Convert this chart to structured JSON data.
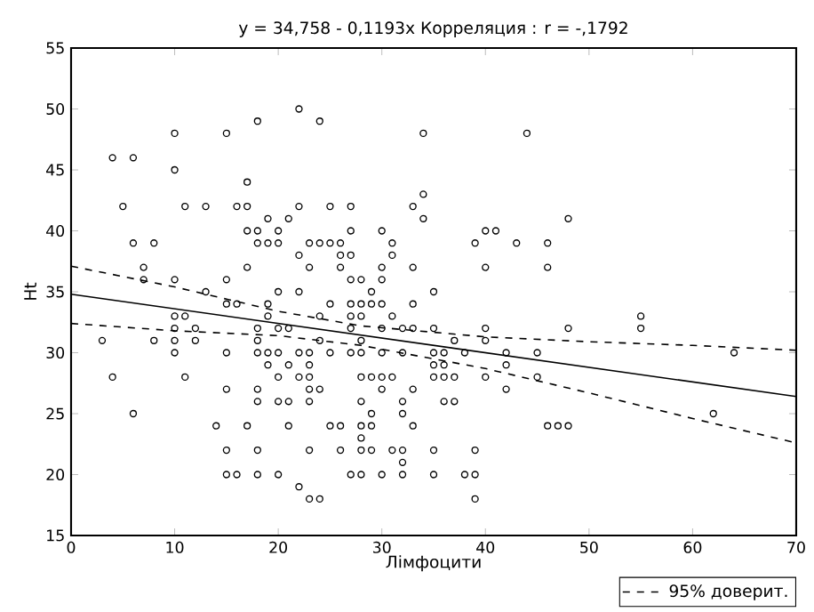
{
  "chart_data": {
    "type": "scatter",
    "title": "y = 34,758 - 0,1193x  Корреляция : r = -,1792",
    "xlabel": "Лімфоцити",
    "ylabel": "Ht",
    "xlim": [
      0,
      70
    ],
    "ylim": [
      15,
      55
    ],
    "xticks": [
      0,
      10,
      20,
      30,
      40,
      50,
      60,
      70
    ],
    "yticks": [
      15,
      20,
      25,
      30,
      35,
      40,
      45,
      50,
      55
    ],
    "grid": false,
    "legend": "bottom right",
    "marker": "circle",
    "series": [
      {
        "color": "#000000",
        "x": [
          22,
          18,
          10,
          15,
          4,
          6,
          10,
          17,
          5,
          11,
          13,
          16,
          17,
          22,
          19,
          21,
          17,
          18,
          20,
          6,
          8,
          18,
          19,
          20,
          23,
          22,
          7,
          17,
          23,
          7,
          10,
          15,
          24,
          34,
          44,
          34,
          25,
          27,
          33,
          34,
          27,
          30,
          40,
          41,
          24,
          25,
          26,
          31,
          39,
          43,
          46,
          26,
          27,
          31,
          26,
          30,
          33,
          40,
          46,
          27,
          28,
          30,
          48,
          13,
          20,
          22,
          15,
          16,
          19,
          10,
          11,
          19,
          10,
          12,
          18,
          20,
          21,
          3,
          8,
          10,
          12,
          18,
          10,
          15,
          18,
          19,
          20,
          22,
          23,
          19,
          21,
          23,
          4,
          11,
          20,
          22,
          23,
          15,
          18,
          23,
          18,
          20,
          21,
          23,
          6,
          14,
          17,
          21,
          15,
          18,
          23,
          15,
          16,
          18,
          20,
          22,
          23,
          29,
          35,
          25,
          27,
          28,
          29,
          30,
          33,
          24,
          27,
          28,
          31,
          27,
          30,
          32,
          33,
          35,
          40,
          24,
          28,
          37,
          40,
          25,
          27,
          28,
          30,
          32,
          35,
          36,
          38,
          42,
          45,
          35,
          36,
          42,
          28,
          29,
          30,
          31,
          35,
          36,
          37,
          40,
          45,
          24,
          30,
          33,
          42,
          28,
          32,
          36,
          37,
          29,
          32,
          25,
          26,
          28,
          29,
          33,
          46,
          28,
          26,
          28,
          29,
          31,
          32,
          35,
          39,
          32,
          27,
          28,
          30,
          32,
          35,
          38,
          39,
          24,
          39,
          48,
          55,
          55,
          64,
          62,
          47,
          48
        ],
        "values": [
          50,
          49,
          48,
          48,
          46,
          46,
          45,
          44,
          42,
          42,
          42,
          42,
          42,
          42,
          41,
          41,
          40,
          40,
          40,
          39,
          39,
          39,
          39,
          39,
          39,
          38,
          37,
          37,
          37,
          36,
          36,
          36,
          49,
          48,
          48,
          43,
          42,
          42,
          42,
          41,
          40,
          40,
          40,
          40,
          39,
          39,
          39,
          39,
          39,
          39,
          39,
          38,
          38,
          38,
          37,
          37,
          37,
          37,
          37,
          36,
          36,
          36,
          41,
          35,
          35,
          35,
          34,
          34,
          34,
          33,
          33,
          33,
          32,
          32,
          32,
          32,
          32,
          31,
          31,
          31,
          31,
          31,
          30,
          30,
          30,
          30,
          30,
          30,
          30,
          29,
          29,
          29,
          28,
          28,
          28,
          28,
          28,
          27,
          27,
          27,
          26,
          26,
          26,
          26,
          25,
          24,
          24,
          24,
          22,
          22,
          22,
          20,
          20,
          20,
          20,
          19,
          18,
          35,
          35,
          34,
          34,
          34,
          34,
          34,
          34,
          33,
          33,
          33,
          33,
          32,
          32,
          32,
          32,
          32,
          32,
          31,
          31,
          31,
          31,
          30,
          30,
          30,
          30,
          30,
          30,
          30,
          30,
          30,
          30,
          29,
          29,
          29,
          28,
          28,
          28,
          28,
          28,
          28,
          28,
          28,
          28,
          27,
          27,
          27,
          27,
          26,
          26,
          26,
          26,
          25,
          25,
          24,
          24,
          24,
          24,
          24,
          24,
          23,
          22,
          22,
          22,
          22,
          22,
          22,
          22,
          21,
          20,
          20,
          20,
          20,
          20,
          20,
          20,
          18,
          18,
          32,
          33,
          32,
          30,
          25,
          24,
          24
        ]
      },
      {
        "type": "line",
        "color": "#000000",
        "marker": "none",
        "line_style": "solid",
        "x": [
          0,
          70
        ],
        "values": [
          34.8,
          26.4
        ]
      },
      {
        "type": "line",
        "name": "95% доверит.",
        "color": "#000000",
        "marker": "none",
        "line_style": "dashed",
        "x": [
          0,
          10,
          20,
          28,
          40,
          50,
          60,
          70
        ],
        "values": [
          37.1,
          35.4,
          33.4,
          32.2,
          31.3,
          30.9,
          30.6,
          30.2
        ]
      },
      {
        "type": "line",
        "color": "#000000",
        "marker": "none",
        "line_style": "dashed",
        "x": [
          0,
          10,
          20,
          28,
          40,
          50,
          60,
          70
        ],
        "values": [
          32.4,
          31.8,
          31.4,
          30.6,
          28.7,
          26.7,
          24.6,
          22.6
        ]
      }
    ]
  }
}
